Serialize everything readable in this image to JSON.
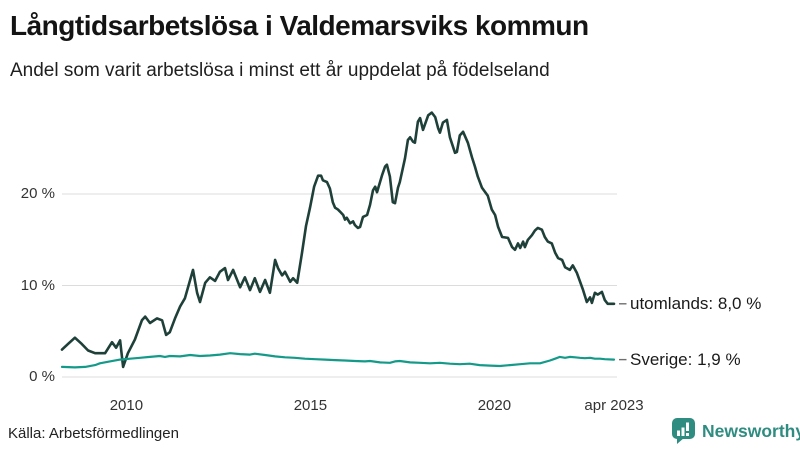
{
  "header": {
    "title": "Långtidsarbetslösa i Valdemarsviks kommun",
    "subtitle": "Andel som varit arbetslösa i minst ett år uppdelat på födelseland"
  },
  "footer": {
    "source": "Källa: Arbetsförmedlingen",
    "brand": {
      "name": "Newsworthy",
      "icon": "bar-chart-speech-bubble-icon",
      "color": "#2e8c80"
    }
  },
  "colors": {
    "background": "#ffffff",
    "gridline": "#dcdcdc",
    "axis_text": "#333333",
    "title_text": "#141414",
    "label_dash": "#6f6f6f"
  },
  "chart_data": {
    "type": "line",
    "title": "Långtidsarbetslösa i Valdemarsviks kommun",
    "subtitle": "Andel som varit arbetslösa i minst ett år uppdelat på födelseland",
    "xlabel": "",
    "ylabel": "",
    "grid": "horizontal",
    "legend_position": "right-of-line-ends",
    "x_axis": {
      "range": [
        2008.25,
        2023.25
      ],
      "ticks": [
        {
          "label": "2010",
          "t": 2010
        },
        {
          "label": "2015",
          "t": 2015
        },
        {
          "label": "2020",
          "t": 2020
        },
        {
          "label": "apr 2023",
          "t": 2023.25
        }
      ]
    },
    "y_axis": {
      "range": [
        0,
        30
      ],
      "unit": "%",
      "ticks": [
        {
          "label": "0 %",
          "value": 0
        },
        {
          "label": "10 %",
          "value": 10
        },
        {
          "label": "20 %",
          "value": 20
        }
      ]
    },
    "series": [
      {
        "name": "utomlands",
        "label": "utomlands: 8,0 %",
        "last_value": 8.0,
        "color": "#1e4038",
        "width": 2.6,
        "points": [
          [
            2008.25,
            3.0
          ],
          [
            2008.41,
            3.6
          ],
          [
            2008.6,
            4.3
          ],
          [
            2008.79,
            3.6
          ],
          [
            2008.96,
            2.9
          ],
          [
            2009.15,
            2.6
          ],
          [
            2009.42,
            2.6
          ],
          [
            2009.61,
            3.8
          ],
          [
            2009.72,
            3.2
          ],
          [
            2009.83,
            4.0
          ],
          [
            2009.91,
            1.1
          ],
          [
            2010.04,
            2.6
          ],
          [
            2010.23,
            4.1
          ],
          [
            2010.42,
            6.2
          ],
          [
            2010.51,
            6.6
          ],
          [
            2010.64,
            5.9
          ],
          [
            2010.83,
            6.4
          ],
          [
            2010.97,
            6.2
          ],
          [
            2011.08,
            4.6
          ],
          [
            2011.18,
            4.9
          ],
          [
            2011.32,
            6.4
          ],
          [
            2011.46,
            7.7
          ],
          [
            2011.59,
            8.6
          ],
          [
            2011.81,
            11.7
          ],
          [
            2011.92,
            9.2
          ],
          [
            2012.0,
            8.2
          ],
          [
            2012.14,
            10.3
          ],
          [
            2012.27,
            10.9
          ],
          [
            2012.41,
            10.5
          ],
          [
            2012.54,
            11.5
          ],
          [
            2012.68,
            11.9
          ],
          [
            2012.76,
            10.6
          ],
          [
            2012.9,
            11.7
          ],
          [
            2013.09,
            9.8
          ],
          [
            2013.22,
            10.9
          ],
          [
            2013.36,
            9.5
          ],
          [
            2013.49,
            10.8
          ],
          [
            2013.63,
            9.3
          ],
          [
            2013.77,
            10.6
          ],
          [
            2013.9,
            9.2
          ],
          [
            2014.04,
            12.8
          ],
          [
            2014.12,
            11.9
          ],
          [
            2014.23,
            11.1
          ],
          [
            2014.31,
            11.5
          ],
          [
            2014.45,
            10.4
          ],
          [
            2014.53,
            10.8
          ],
          [
            2014.64,
            10.3
          ],
          [
            2014.77,
            13.5
          ],
          [
            2014.88,
            16.5
          ],
          [
            2014.99,
            18.5
          ],
          [
            2015.1,
            20.8
          ],
          [
            2015.21,
            22.0
          ],
          [
            2015.29,
            22.0
          ],
          [
            2015.34,
            21.5
          ],
          [
            2015.45,
            21.3
          ],
          [
            2015.53,
            20.6
          ],
          [
            2015.61,
            19.1
          ],
          [
            2015.67,
            18.5
          ],
          [
            2015.75,
            18.3
          ],
          [
            2015.8,
            18.1
          ],
          [
            2015.89,
            17.7
          ],
          [
            2015.94,
            17.2
          ],
          [
            2015.99,
            17.4
          ],
          [
            2016.08,
            16.8
          ],
          [
            2016.16,
            17.0
          ],
          [
            2016.21,
            16.6
          ],
          [
            2016.29,
            16.3
          ],
          [
            2016.35,
            16.4
          ],
          [
            2016.43,
            17.5
          ],
          [
            2016.54,
            17.7
          ],
          [
            2016.62,
            18.8
          ],
          [
            2016.7,
            20.4
          ],
          [
            2016.76,
            20.8
          ],
          [
            2016.81,
            20.2
          ],
          [
            2016.95,
            22.1
          ],
          [
            2017.03,
            23.0
          ],
          [
            2017.08,
            23.2
          ],
          [
            2017.16,
            21.9
          ],
          [
            2017.24,
            19.1
          ],
          [
            2017.3,
            19.0
          ],
          [
            2017.38,
            20.7
          ],
          [
            2017.43,
            21.3
          ],
          [
            2017.57,
            23.9
          ],
          [
            2017.65,
            25.9
          ],
          [
            2017.71,
            26.2
          ],
          [
            2017.79,
            25.7
          ],
          [
            2017.84,
            25.6
          ],
          [
            2017.92,
            27.9
          ],
          [
            2017.98,
            28.3
          ],
          [
            2018.06,
            27.0
          ],
          [
            2018.2,
            28.6
          ],
          [
            2018.3,
            28.9
          ],
          [
            2018.39,
            28.4
          ],
          [
            2018.47,
            27.2
          ],
          [
            2018.52,
            26.7
          ],
          [
            2018.6,
            27.8
          ],
          [
            2018.71,
            28.1
          ],
          [
            2018.79,
            26.2
          ],
          [
            2018.93,
            24.5
          ],
          [
            2018.98,
            24.6
          ],
          [
            2019.06,
            26.4
          ],
          [
            2019.15,
            26.8
          ],
          [
            2019.28,
            25.6
          ],
          [
            2019.39,
            24.0
          ],
          [
            2019.47,
            23.0
          ],
          [
            2019.55,
            21.9
          ],
          [
            2019.66,
            20.7
          ],
          [
            2019.82,
            19.8
          ],
          [
            2019.93,
            18.3
          ],
          [
            2020.02,
            17.7
          ],
          [
            2020.1,
            16.4
          ],
          [
            2020.21,
            15.3
          ],
          [
            2020.37,
            15.2
          ],
          [
            2020.48,
            14.2
          ],
          [
            2020.56,
            13.9
          ],
          [
            2020.64,
            14.6
          ],
          [
            2020.7,
            14.1
          ],
          [
            2020.78,
            14.8
          ],
          [
            2020.83,
            14.2
          ],
          [
            2020.91,
            15.0
          ],
          [
            2021.02,
            15.5
          ],
          [
            2021.1,
            16.0
          ],
          [
            2021.18,
            16.3
          ],
          [
            2021.29,
            16.1
          ],
          [
            2021.37,
            15.3
          ],
          [
            2021.45,
            14.8
          ],
          [
            2021.56,
            14.6
          ],
          [
            2021.65,
            13.6
          ],
          [
            2021.73,
            13.0
          ],
          [
            2021.84,
            12.8
          ],
          [
            2021.92,
            12.0
          ],
          [
            2022.05,
            11.7
          ],
          [
            2022.13,
            12.2
          ],
          [
            2022.24,
            11.4
          ],
          [
            2022.41,
            9.5
          ],
          [
            2022.51,
            8.2
          ],
          [
            2022.6,
            8.7
          ],
          [
            2022.65,
            8.1
          ],
          [
            2022.73,
            9.2
          ],
          [
            2022.81,
            9.0
          ],
          [
            2022.92,
            9.3
          ],
          [
            2023.0,
            8.4
          ],
          [
            2023.08,
            8.0
          ],
          [
            2023.25,
            8.0
          ]
        ]
      },
      {
        "name": "Sverige",
        "label": "Sverige: 1,9 %",
        "last_value": 1.9,
        "color": "#149a89",
        "width": 2.2,
        "points": [
          [
            2008.25,
            1.1
          ],
          [
            2008.6,
            1.05
          ],
          [
            2008.88,
            1.1
          ],
          [
            2009.15,
            1.3
          ],
          [
            2009.28,
            1.5
          ],
          [
            2009.55,
            1.7
          ],
          [
            2009.83,
            1.9
          ],
          [
            2010.1,
            2.0
          ],
          [
            2010.37,
            2.1
          ],
          [
            2010.64,
            2.2
          ],
          [
            2010.91,
            2.3
          ],
          [
            2011.05,
            2.2
          ],
          [
            2011.18,
            2.3
          ],
          [
            2011.46,
            2.25
          ],
          [
            2011.73,
            2.4
          ],
          [
            2012.0,
            2.3
          ],
          [
            2012.27,
            2.35
          ],
          [
            2012.54,
            2.45
          ],
          [
            2012.82,
            2.6
          ],
          [
            2013.09,
            2.5
          ],
          [
            2013.36,
            2.45
          ],
          [
            2013.49,
            2.55
          ],
          [
            2013.77,
            2.4
          ],
          [
            2014.04,
            2.25
          ],
          [
            2014.31,
            2.15
          ],
          [
            2014.58,
            2.1
          ],
          [
            2014.85,
            2.0
          ],
          [
            2015.13,
            1.95
          ],
          [
            2015.4,
            1.9
          ],
          [
            2015.67,
            1.85
          ],
          [
            2015.94,
            1.8
          ],
          [
            2016.21,
            1.75
          ],
          [
            2016.48,
            1.7
          ],
          [
            2016.62,
            1.75
          ],
          [
            2016.89,
            1.6
          ],
          [
            2017.16,
            1.55
          ],
          [
            2017.3,
            1.7
          ],
          [
            2017.43,
            1.75
          ],
          [
            2017.71,
            1.6
          ],
          [
            2017.98,
            1.55
          ],
          [
            2018.25,
            1.5
          ],
          [
            2018.52,
            1.55
          ],
          [
            2018.79,
            1.45
          ],
          [
            2019.06,
            1.4
          ],
          [
            2019.33,
            1.45
          ],
          [
            2019.6,
            1.3
          ],
          [
            2019.88,
            1.25
          ],
          [
            2020.15,
            1.2
          ],
          [
            2020.42,
            1.3
          ],
          [
            2020.7,
            1.4
          ],
          [
            2020.97,
            1.5
          ],
          [
            2021.24,
            1.5
          ],
          [
            2021.51,
            1.8
          ],
          [
            2021.65,
            2.0
          ],
          [
            2021.78,
            2.2
          ],
          [
            2021.92,
            2.1
          ],
          [
            2022.05,
            2.2
          ],
          [
            2022.19,
            2.15
          ],
          [
            2022.32,
            2.1
          ],
          [
            2022.46,
            2.05
          ],
          [
            2022.6,
            2.1
          ],
          [
            2022.73,
            2.0
          ],
          [
            2022.87,
            2.0
          ],
          [
            2023.0,
            1.95
          ],
          [
            2023.25,
            1.9
          ]
        ]
      }
    ]
  }
}
